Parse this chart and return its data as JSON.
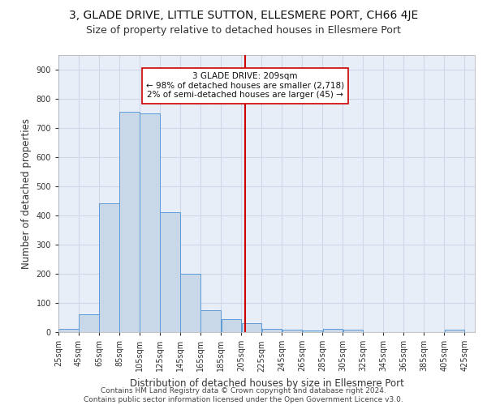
{
  "title": "3, GLADE DRIVE, LITTLE SUTTON, ELLESMERE PORT, CH66 4JE",
  "subtitle": "Size of property relative to detached houses in Ellesmere Port",
  "xlabel": "Distribution of detached houses by size in Ellesmere Port",
  "ylabel": "Number of detached properties",
  "bar_edges": [
    25,
    45,
    65,
    85,
    105,
    125,
    145,
    165,
    185,
    205,
    225,
    245,
    265,
    285,
    305,
    325,
    345,
    365,
    385,
    405,
    425
  ],
  "bar_heights": [
    10,
    60,
    440,
    755,
    750,
    410,
    200,
    75,
    45,
    30,
    10,
    8,
    5,
    10,
    8,
    0,
    0,
    0,
    0,
    8
  ],
  "bar_color": "#c8d8e8",
  "bar_edge_color": "#5b9bd5",
  "vline_x": 209,
  "vline_color": "#cc0000",
  "annotation_text": "3 GLADE DRIVE: 209sqm\n← 98% of detached houses are smaller (2,718)\n2% of semi-detached houses are larger (45) →",
  "annotation_box_color": "#ffffff",
  "annotation_box_edge": "#cc0000",
  "ylim": [
    0,
    950
  ],
  "yticks": [
    0,
    100,
    200,
    300,
    400,
    500,
    600,
    700,
    800,
    900
  ],
  "grid_color": "#d0d8e8",
  "background_color": "#e8eef8",
  "tick_labels": [
    "25sqm",
    "45sqm",
    "65sqm",
    "85sqm",
    "105sqm",
    "125sqm",
    "145sqm",
    "165sqm",
    "185sqm",
    "205sqm",
    "225sqm",
    "245sqm",
    "265sqm",
    "285sqm",
    "305sqm",
    "325sqm",
    "345sqm",
    "365sqm",
    "385sqm",
    "405sqm",
    "425sqm"
  ],
  "footer_text": "Contains HM Land Registry data © Crown copyright and database right 2024.\nContains public sector information licensed under the Open Government Licence v3.0.",
  "title_fontsize": 10,
  "subtitle_fontsize": 9,
  "xlabel_fontsize": 8.5,
  "ylabel_fontsize": 8.5,
  "tick_fontsize": 7,
  "annotation_fontsize": 7.5,
  "footer_fontsize": 6.5
}
